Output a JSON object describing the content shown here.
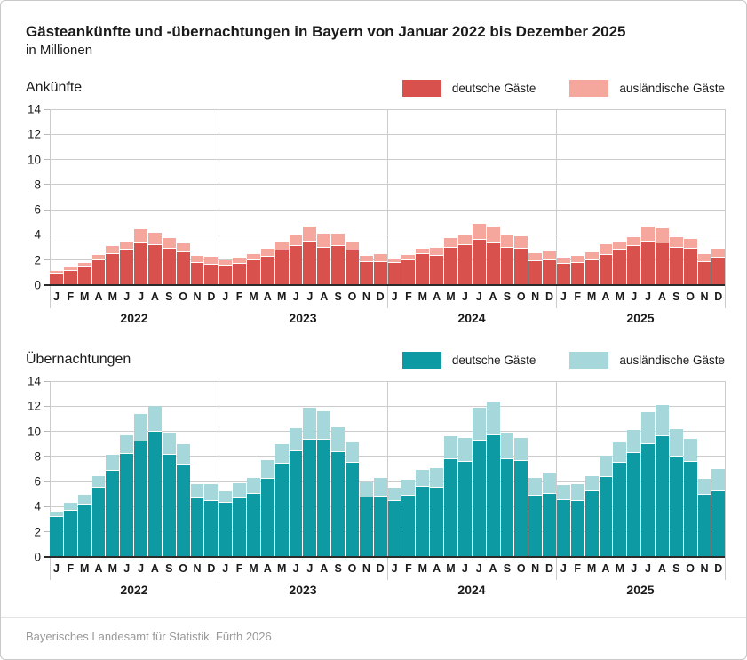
{
  "title": "Gästeankünfte und -übernachtungen in Bayern von Januar 2022 bis Dezember 2025",
  "subtitle": "in Millionen",
  "footer": "Bayerisches Landesamt für Statistik, Fürth 2026",
  "colors": {
    "arrivals_domestic": "#d8514d",
    "arrivals_foreign": "#f5a79e",
    "overnights_domestic": "#0d9aa2",
    "overnights_foreign": "#a6d7db",
    "gridline": "#cccccc",
    "axis": "#2b2b2b",
    "footer_text": "#999999"
  },
  "chart_data": [
    {
      "type": "bar",
      "stacked": true,
      "title": "Ankünfte",
      "unit": "Millionen",
      "ylim": [
        0,
        14
      ],
      "yticks": [
        0,
        2,
        4,
        6,
        8,
        10,
        12,
        14
      ],
      "months": [
        "J",
        "F",
        "M",
        "A",
        "M",
        "J",
        "J",
        "A",
        "S",
        "O",
        "N",
        "D"
      ],
      "years": [
        "2022",
        "2023",
        "2024",
        "2025"
      ],
      "legend": [
        {
          "label": "deutsche Gäste",
          "color": "#d8514d"
        },
        {
          "label": "ausländische Gäste",
          "color": "#f5a79e"
        }
      ],
      "series": [
        {
          "name": "deutsche Gäste",
          "color": "#d8514d",
          "values": [
            0.95,
            1.15,
            1.4,
            1.95,
            2.5,
            2.85,
            3.4,
            3.2,
            2.9,
            2.65,
            1.8,
            1.65,
            1.55,
            1.7,
            1.95,
            2.25,
            2.75,
            3.1,
            3.45,
            3.0,
            3.1,
            2.75,
            1.85,
            1.85,
            1.75,
            2.0,
            2.45,
            2.35,
            3.0,
            3.2,
            3.6,
            3.4,
            3.0,
            2.9,
            1.9,
            2.0,
            1.7,
            1.8,
            2.0,
            2.4,
            2.85,
            3.1,
            3.45,
            3.35,
            3.0,
            2.9,
            1.85,
            2.2
          ]
        },
        {
          "name": "ausländische Gäste",
          "color": "#f5a79e",
          "values": [
            0.15,
            0.25,
            0.35,
            0.45,
            0.6,
            0.65,
            1.05,
            1.0,
            0.85,
            0.7,
            0.5,
            0.6,
            0.45,
            0.5,
            0.55,
            0.65,
            0.75,
            0.9,
            1.2,
            1.1,
            1.0,
            0.7,
            0.45,
            0.65,
            0.3,
            0.4,
            0.45,
            0.65,
            0.75,
            0.8,
            1.25,
            1.25,
            1.0,
            1.0,
            0.65,
            0.7,
            0.45,
            0.5,
            0.6,
            0.85,
            0.65,
            0.7,
            1.2,
            1.2,
            0.8,
            0.8,
            0.65,
            0.7
          ]
        }
      ]
    },
    {
      "type": "bar",
      "stacked": true,
      "title": "Übernachtungen",
      "unit": "Millionen",
      "ylim": [
        0,
        14
      ],
      "yticks": [
        0,
        2,
        4,
        6,
        8,
        10,
        12,
        14
      ],
      "months": [
        "J",
        "F",
        "M",
        "A",
        "M",
        "J",
        "J",
        "A",
        "S",
        "O",
        "N",
        "D"
      ],
      "years": [
        "2022",
        "2023",
        "2024",
        "2025"
      ],
      "legend": [
        {
          "label": "deutsche Gäste",
          "color": "#0d9aa2"
        },
        {
          "label": "ausländische Gäste",
          "color": "#a6d7db"
        }
      ],
      "series": [
        {
          "name": "deutsche Gäste",
          "color": "#0d9aa2",
          "values": [
            3.2,
            3.65,
            4.2,
            5.55,
            6.85,
            8.2,
            9.2,
            9.95,
            8.1,
            7.35,
            4.7,
            4.45,
            4.3,
            4.65,
            5.0,
            6.2,
            7.45,
            8.45,
            9.35,
            9.35,
            8.35,
            7.5,
            4.75,
            4.8,
            4.45,
            4.85,
            5.6,
            5.55,
            7.8,
            7.6,
            9.25,
            9.7,
            7.75,
            7.65,
            4.9,
            5.0,
            4.55,
            4.45,
            5.2,
            6.4,
            7.5,
            8.3,
            9.0,
            9.65,
            8.0,
            7.55,
            4.95,
            5.25
          ]
        },
        {
          "name": "ausländische Gäste",
          "color": "#a6d7db",
          "values": [
            0.4,
            0.65,
            0.75,
            0.9,
            1.3,
            1.5,
            2.2,
            2.1,
            1.75,
            1.65,
            1.1,
            1.35,
            0.95,
            1.2,
            1.3,
            1.5,
            1.55,
            1.8,
            2.5,
            2.25,
            2.0,
            1.65,
            1.2,
            1.5,
            1.1,
            1.3,
            1.35,
            1.55,
            1.85,
            1.9,
            2.6,
            2.65,
            2.1,
            1.8,
            1.4,
            1.7,
            1.15,
            1.35,
            1.25,
            1.65,
            1.6,
            1.8,
            2.55,
            2.45,
            2.15,
            1.85,
            1.25,
            1.75
          ]
        }
      ]
    }
  ]
}
